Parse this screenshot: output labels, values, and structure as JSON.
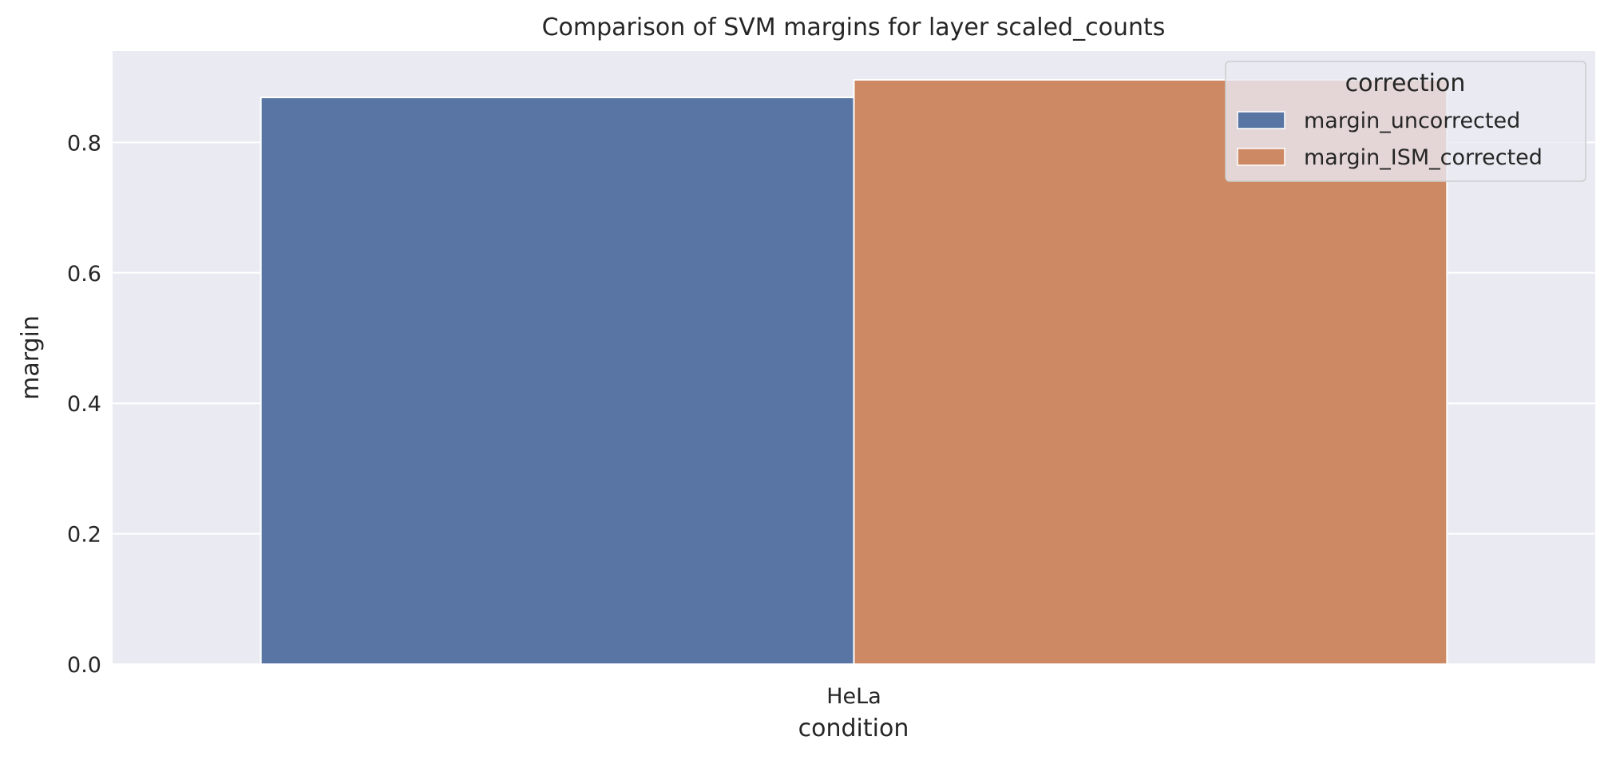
{
  "chart_data": {
    "type": "bar",
    "title": "Comparison of SVM margins for layer scaled_counts",
    "xlabel": "condition",
    "ylabel": "margin",
    "categories": [
      "HeLa"
    ],
    "series": [
      {
        "name": "margin_uncorrected",
        "values": [
          0.869
        ],
        "color": "#5875a4"
      },
      {
        "name": "margin_ISM_corrected",
        "values": [
          0.896
        ],
        "color": "#cc8963"
      }
    ],
    "ylim": [
      0,
      0.94
    ],
    "yticks": [
      0.0,
      0.2,
      0.4,
      0.6,
      0.8
    ],
    "ytick_labels": [
      "0.0",
      "0.2",
      "0.4",
      "0.6",
      "0.8"
    ],
    "grid": true,
    "legend": {
      "title": "correction",
      "position": "top-right"
    },
    "background_color": "#eaeaf2"
  }
}
